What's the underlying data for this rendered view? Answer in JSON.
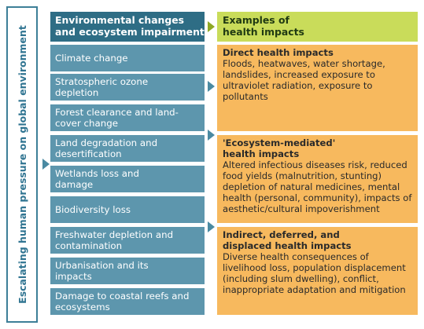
{
  "side_label": "Escalating human pressure on global environment",
  "header": {
    "left": "Environmental changes and ecosystem impairment",
    "right": "Examples of health impacts"
  },
  "changes": [
    "Climate change",
    "Stratospheric ozone depletion",
    "Forest clearance and land-cover change",
    "Land degradation and desertification",
    "Wetlands loss and damage",
    "Biodiversity loss",
    "Freshwater depletion and contamination",
    "Urbanisation and its impacts",
    "Damage to coastal reefs and ecosystems"
  ],
  "impacts": [
    {
      "title": "Direct health impacts",
      "text": "Floods, heatwaves, water shortage, landslides, increased exposure to ultraviolet radiation, exposure to pollutants"
    },
    {
      "title": "'Ecosystem-mediated' health impacts",
      "text": "Altered infectious diseases risk, reduced food yields (malnutrition, stunting) depletion of natural medicines, mental health (personal, community), impacts of aesthetic/cultural impoverishment"
    },
    {
      "title": "Indirect, deferred, and displaced health impacts",
      "text": "Diverse health consequences of livelihood loss, population displacement (including slum dwelling), conflict, inappropriate adaptation and mitigation"
    }
  ],
  "colors": {
    "header_left": "#2e6d85",
    "change_box": "#5d96ad",
    "header_right": "#c9dc5a",
    "impact_box": "#f7b95e",
    "frame": "#3d7f98"
  }
}
